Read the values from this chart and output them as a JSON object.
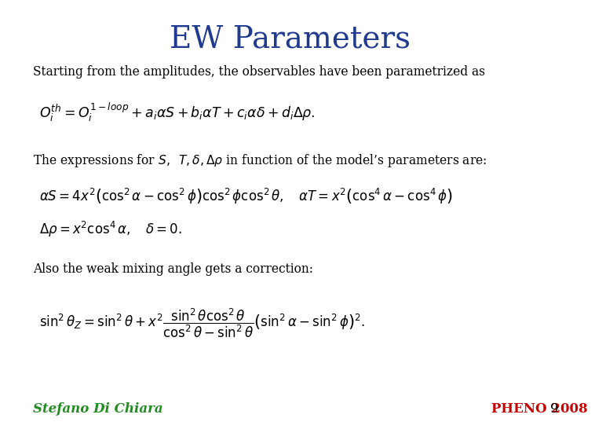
{
  "title": "EW Parameters",
  "title_color": "#1F3A8F",
  "title_fontsize": 28,
  "background_color": "#FFFFFF",
  "text_color": "#000000",
  "author_color": "#228B22",
  "pheno_color": "#CC0000",
  "author": "Stefano Di Chiara",
  "pheno": "PHENO 2008",
  "page_num": "9",
  "line1": "Starting from the amplitudes, the observables have been parametrized as",
  "eq1": "$O_i^{th} = O_i^{1-loop} + a_i \\alpha S + b_i \\alpha T + c_i \\alpha \\delta + d_i \\Delta\\rho.$",
  "line2_pre": "The expressions for ",
  "line2_math": "$S, \\;\\; T, \\delta, \\Delta\\rho$",
  "line2_post": " in function of the model’s parameters are:",
  "eq2a": "$\\alpha S = 4x^2\\left(\\cos^2\\alpha - \\cos^2\\phi\\right)\\cos^2\\phi\\cos^2\\theta, \\quad \\alpha T = x^2\\left(\\cos^4\\alpha - \\cos^4\\phi\\right)$",
  "eq2b": "$\\Delta\\rho = x^2\\cos^4\\alpha, \\quad \\delta = 0.$",
  "line3": "Also the weak mixing angle gets a correction:",
  "eq3": "$\\sin^2\\theta_Z = \\sin^2\\theta + x^2 \\dfrac{\\sin^2\\theta\\cos^2\\theta}{\\cos^2\\theta - \\sin^2\\theta}\\left(\\sin^2\\alpha - \\sin^2\\phi\\right)^2.$"
}
